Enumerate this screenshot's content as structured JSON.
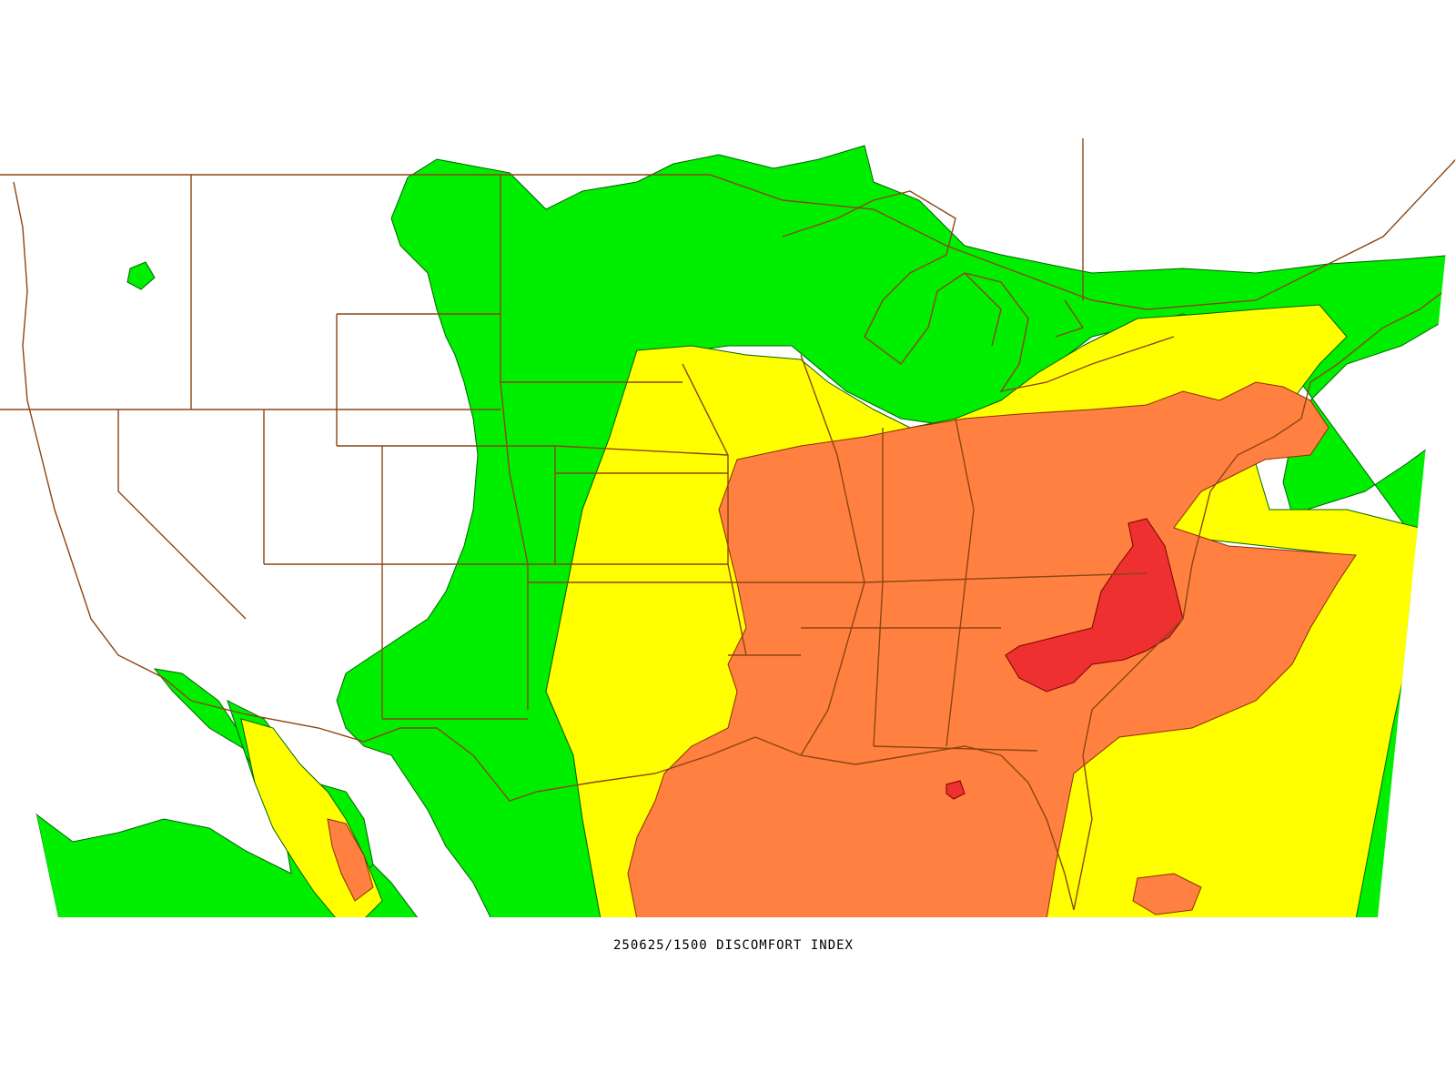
{
  "map": {
    "caption": "250625/1500 DISCOMFORT INDEX",
    "colors": {
      "background": "#ffffff",
      "green_zone": "#00ee00",
      "yellow_zone": "#ffff00",
      "orange_zone": "#ff8040",
      "red_zone": "#ee3030",
      "borders": "#8b4513",
      "contours": "#006400"
    }
  }
}
